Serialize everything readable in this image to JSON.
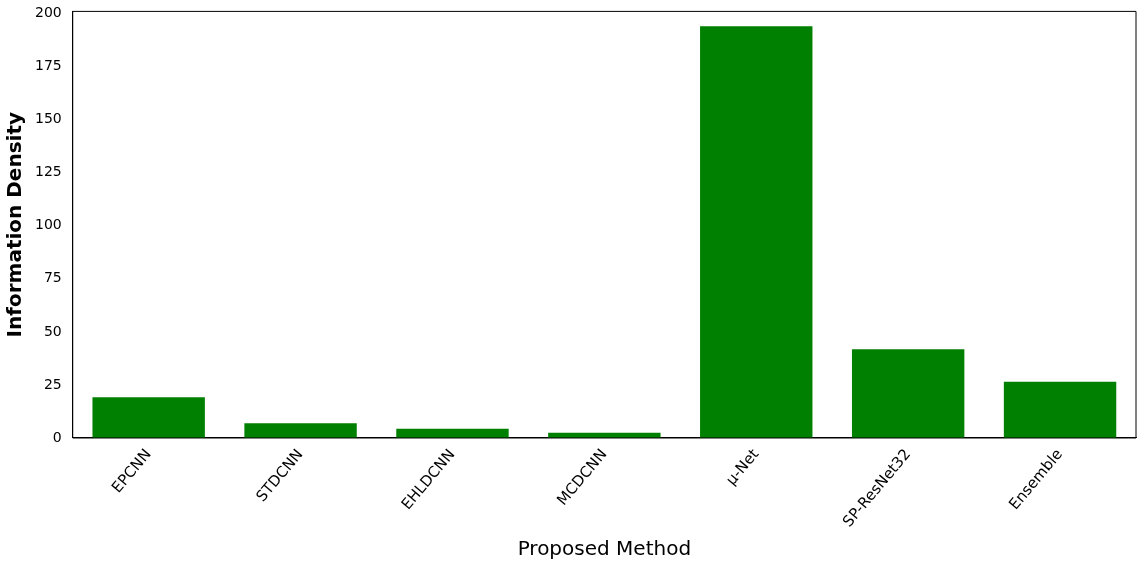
{
  "chart_data": {
    "type": "bar",
    "xlabel": "Proposed Method",
    "ylabel": "Information Density",
    "categories": [
      "EPCNN",
      "STDCNN",
      "EHLDCNN",
      "MCDCNN",
      "μ-Net",
      "SP-ResNet32",
      "Ensemble"
    ],
    "values": [
      19.2,
      6.9,
      4.4,
      2.5,
      194,
      41.8,
      26.5
    ],
    "color": "#008000",
    "ylim": [
      0,
      201
    ],
    "yticks": [
      0,
      25,
      50,
      75,
      100,
      125,
      150,
      175,
      200
    ],
    "grid": false,
    "legend": false
  }
}
